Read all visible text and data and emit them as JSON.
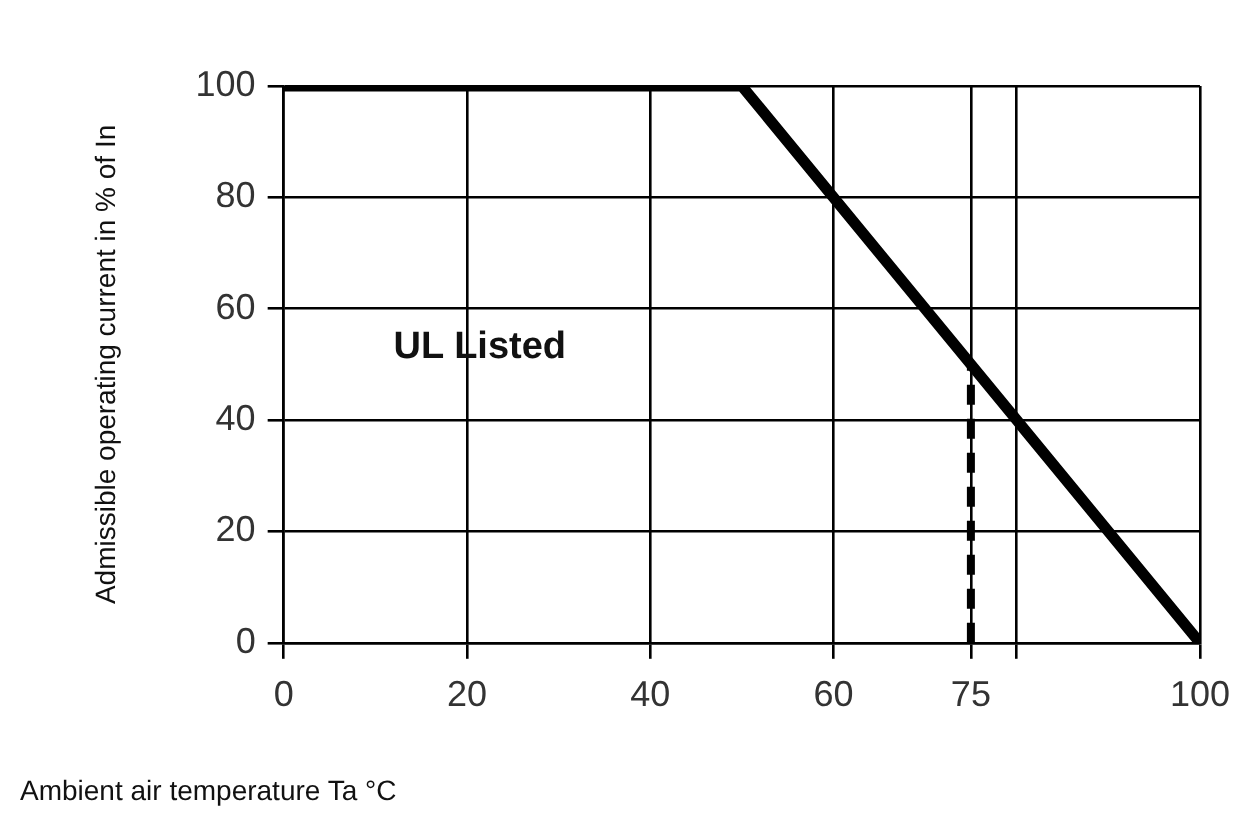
{
  "chart_data": {
    "type": "line",
    "xlabel": "Ambient air temperature Ta °C",
    "ylabel": "Admissible operating current in % of In",
    "series": [
      {
        "color": "#000000",
        "x": [
          0,
          50,
          100
        ],
        "values": [
          100,
          100,
          0
        ]
      },
      {
        "color": "#000000",
        "x": [
          75,
          75
        ],
        "values": [
          0,
          50
        ],
        "line_style": "dashed"
      }
    ],
    "xlim": [
      0,
      100
    ],
    "xticks": [
      0,
      20,
      40,
      60,
      75,
      {
        "value": 80,
        "label": null
      },
      100
    ],
    "ylim": [
      0,
      100
    ],
    "yticks": [
      0,
      20,
      40,
      60,
      80,
      100
    ],
    "grid": true,
    "legend": false,
    "marker": "none",
    "line_style": "solid",
    "annotations": [
      "UL Listed"
    ]
  }
}
